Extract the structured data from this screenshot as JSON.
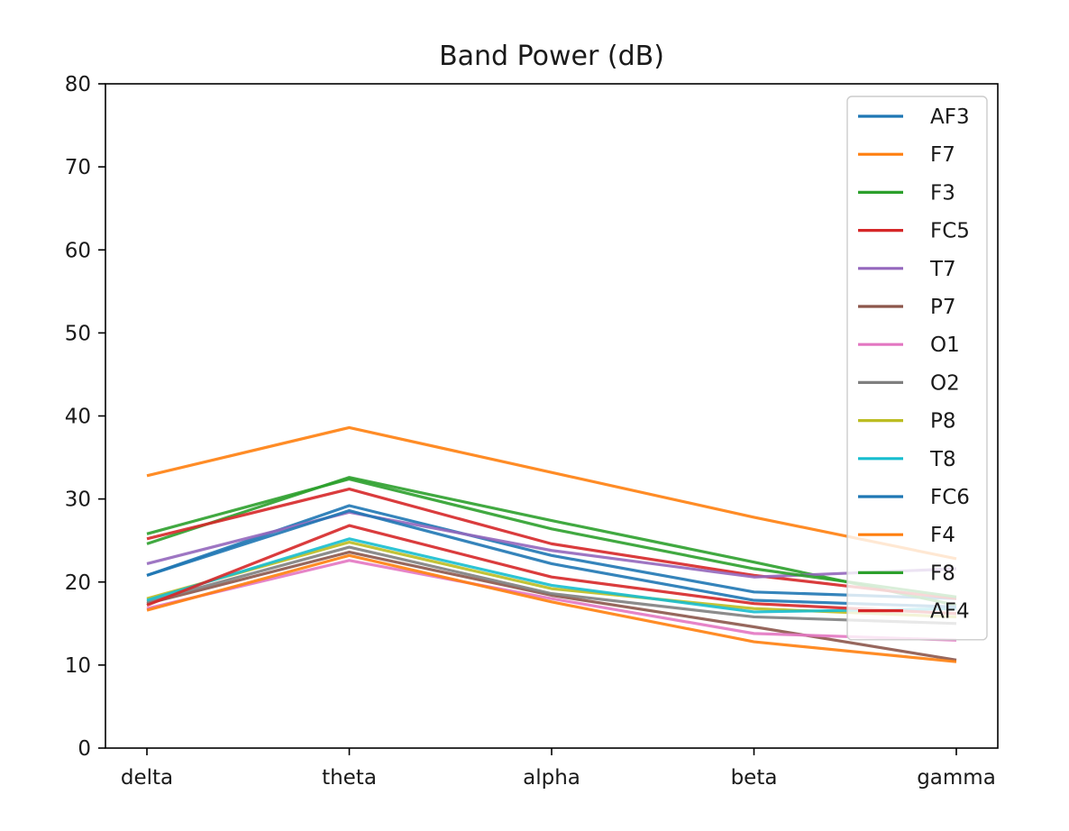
{
  "chart_data": {
    "type": "line",
    "title": "Band Power (dB)",
    "xlabel": "",
    "ylabel": "",
    "categories": [
      "delta",
      "theta",
      "alpha",
      "beta",
      "gamma"
    ],
    "ylim": [
      0,
      80
    ],
    "yticks": [
      0,
      10,
      20,
      30,
      40,
      50,
      60,
      70,
      80
    ],
    "grid": false,
    "legend_position": "top-right",
    "series": [
      {
        "name": "AF3",
        "color": "#1f77b4",
        "values": [
          20.8,
          29.2,
          23.2,
          18.8,
          18.0
        ]
      },
      {
        "name": "F7",
        "color": "#ff7f0e",
        "values": [
          32.8,
          38.6,
          33.2,
          27.8,
          22.8
        ]
      },
      {
        "name": "F3",
        "color": "#2ca02c",
        "values": [
          24.6,
          32.6,
          27.4,
          22.4,
          17.2
        ]
      },
      {
        "name": "FC5",
        "color": "#d62728",
        "values": [
          25.2,
          31.2,
          24.6,
          20.8,
          18.0
        ]
      },
      {
        "name": "T7",
        "color": "#9467bd",
        "values": [
          22.2,
          28.4,
          23.8,
          20.6,
          21.6
        ]
      },
      {
        "name": "P7",
        "color": "#8c564b",
        "values": [
          17.4,
          23.6,
          18.4,
          14.6,
          10.6
        ]
      },
      {
        "name": "O1",
        "color": "#e377c2",
        "values": [
          16.8,
          22.6,
          18.0,
          13.8,
          13.0
        ]
      },
      {
        "name": "O2",
        "color": "#7f7f7f",
        "values": [
          17.6,
          24.2,
          18.6,
          15.8,
          15.0
        ]
      },
      {
        "name": "P8",
        "color": "#bcbd22",
        "values": [
          18.0,
          24.8,
          19.2,
          16.8,
          15.8
        ]
      },
      {
        "name": "T8",
        "color": "#17becf",
        "values": [
          17.8,
          25.2,
          19.6,
          16.4,
          16.8
        ]
      },
      {
        "name": "FC6",
        "color": "#1f77b4",
        "values": [
          20.8,
          28.6,
          22.2,
          17.8,
          17.0
        ]
      },
      {
        "name": "F4",
        "color": "#ff7f0e",
        "values": [
          16.6,
          23.2,
          17.6,
          12.8,
          10.4
        ]
      },
      {
        "name": "F8",
        "color": "#2ca02c",
        "values": [
          25.8,
          32.4,
          26.4,
          21.6,
          18.2
        ]
      },
      {
        "name": "AF4",
        "color": "#d62728",
        "values": [
          17.2,
          26.8,
          20.6,
          17.4,
          16.2
        ]
      }
    ]
  }
}
